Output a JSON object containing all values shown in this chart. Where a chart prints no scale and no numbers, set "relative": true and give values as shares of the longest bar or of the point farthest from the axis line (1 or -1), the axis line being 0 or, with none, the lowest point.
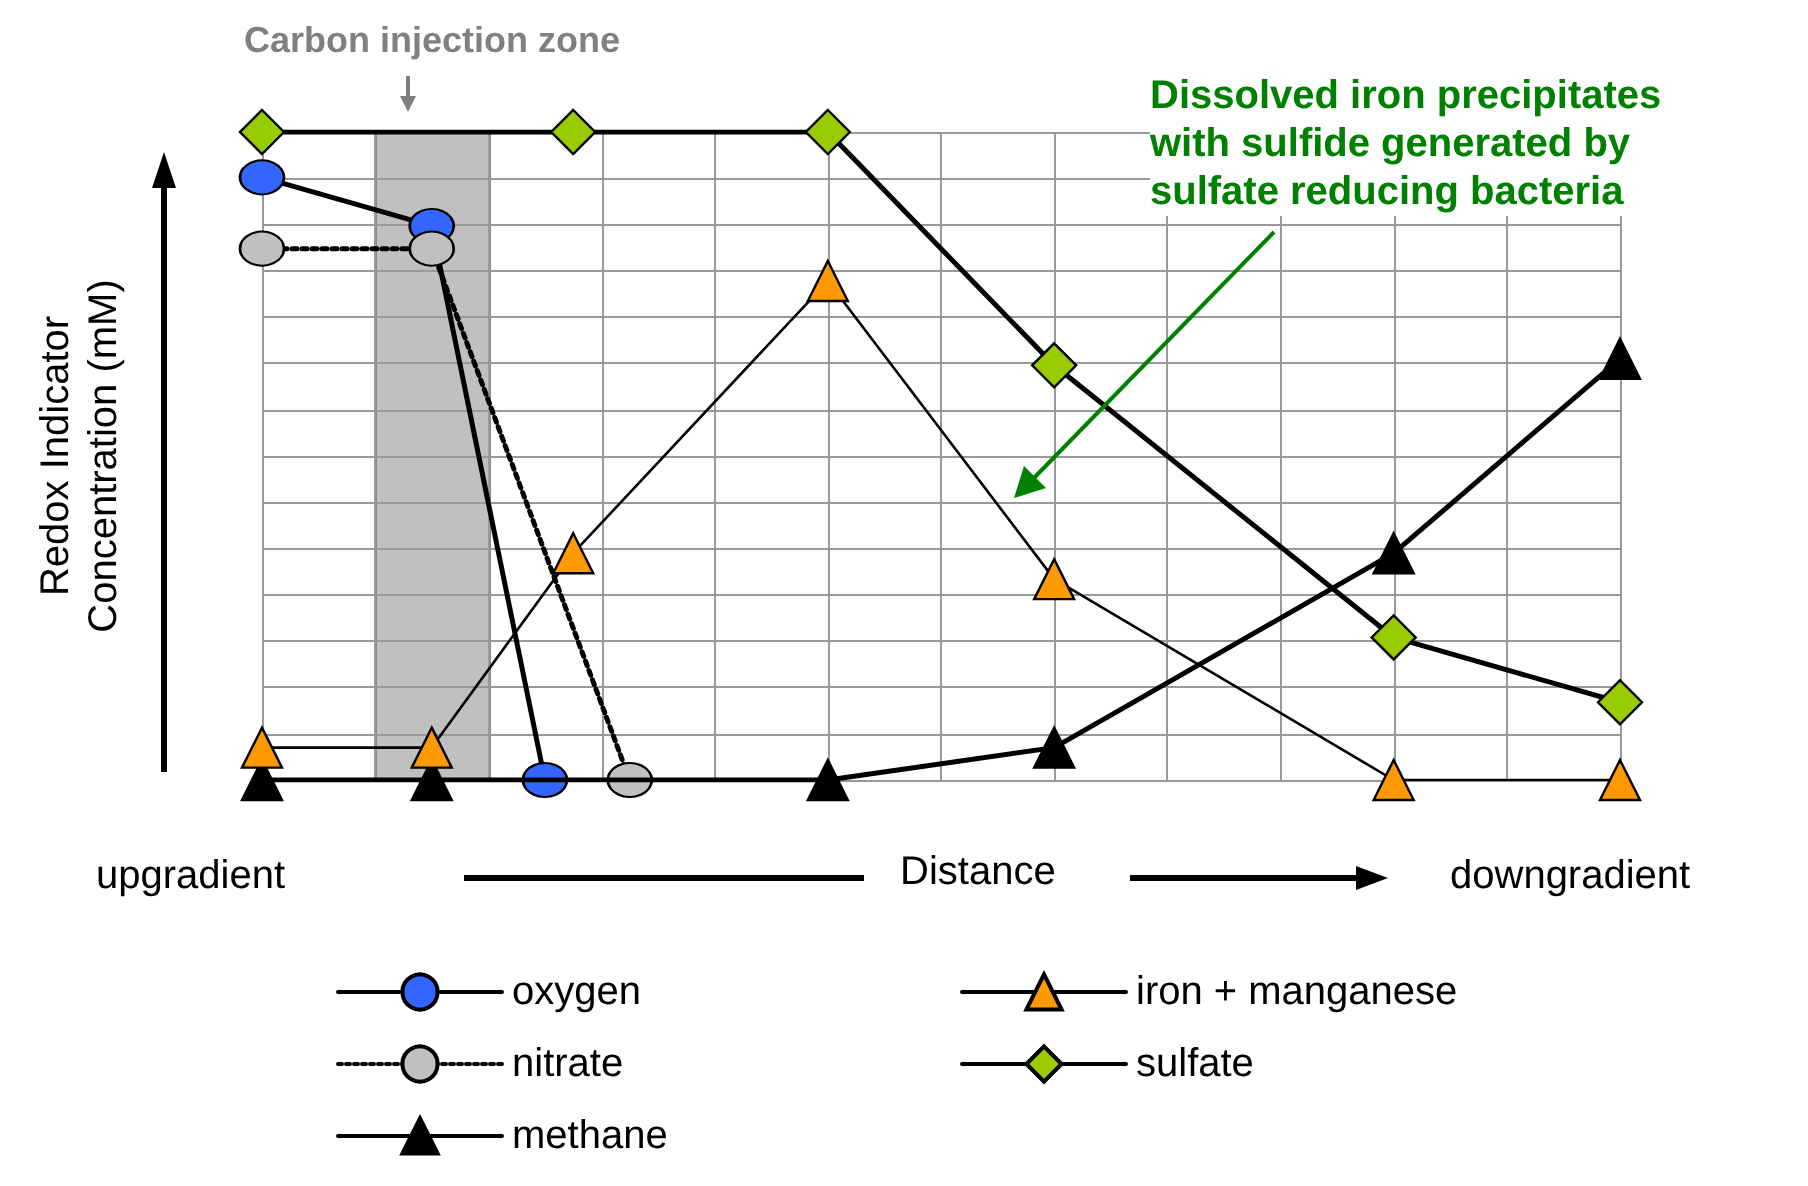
{
  "chart_data": {
    "type": "line",
    "relative": true,
    "ylabel": "Redox Indicator\nConcentration (mM)",
    "xlabel": "Distance",
    "grid": true,
    "legend": "bottom",
    "categories": [
      null,
      null,
      null,
      null,
      null,
      null,
      null,
      null,
      null,
      null,
      null,
      null,
      null,
      null,
      null,
      null,
      null,
      null,
      null,
      null,
      null,
      null,
      null,
      null,
      null,
      null,
      null,
      null,
      null,
      null,
      null,
      null,
      null,
      null,
      null,
      null,
      null,
      null,
      null,
      null,
      null,
      null,
      null,
      null,
      null,
      null,
      null,
      null,
      null
    ],
    "series": [
      {
        "name": "oxygen",
        "color": "#3366ff",
        "marker": "circle",
        "values": [
          0.93,
          null,
          null,
          null,
          null,
          null,
          0.855,
          null,
          null,
          null,
          0,
          null,
          null,
          null,
          null,
          null,
          null,
          null,
          null,
          null,
          null,
          null,
          null,
          null,
          null,
          null,
          null,
          null,
          null,
          null,
          null,
          null,
          null,
          null,
          null,
          null,
          null,
          null,
          null,
          null,
          null,
          null,
          null,
          null,
          null,
          null,
          null,
          null,
          null
        ]
      },
      {
        "name": "nitrate",
        "color": "#c0c0c0",
        "marker": "circle",
        "line_style": "dotted",
        "values": [
          0.82,
          null,
          null,
          null,
          null,
          null,
          0.82,
          null,
          null,
          null,
          null,
          null,
          null,
          0,
          null,
          null,
          null,
          null,
          null,
          null,
          null,
          null,
          null,
          null,
          null,
          null,
          null,
          null,
          null,
          null,
          null,
          null,
          null,
          null,
          null,
          null,
          null,
          null,
          null,
          null,
          null,
          null,
          null,
          null,
          null,
          null,
          null,
          null,
          null
        ]
      },
      {
        "name": "methane",
        "color": "#000000",
        "marker": "triangle",
        "values": [
          0,
          null,
          null,
          null,
          null,
          null,
          0,
          null,
          null,
          null,
          null,
          null,
          null,
          null,
          null,
          null,
          null,
          null,
          null,
          null,
          0,
          null,
          null,
          null,
          null,
          null,
          null,
          null,
          0.05,
          null,
          null,
          null,
          null,
          null,
          null,
          null,
          null,
          null,
          null,
          null,
          0.35,
          null,
          null,
          null,
          null,
          null,
          null,
          null,
          0.65
        ]
      },
      {
        "name": "iron + manganese",
        "color": "#ff9900",
        "marker": "triangle",
        "values": [
          0.05,
          null,
          null,
          null,
          null,
          null,
          0.05,
          null,
          null,
          null,
          null,
          0.35,
          null,
          null,
          null,
          null,
          null,
          null,
          null,
          null,
          0.77,
          null,
          null,
          null,
          null,
          null,
          null,
          null,
          0.31,
          null,
          null,
          null,
          null,
          null,
          null,
          null,
          null,
          null,
          null,
          null,
          0,
          null,
          null,
          null,
          null,
          null,
          null,
          null,
          0
        ]
      },
      {
        "name": "sulfate",
        "color": "#99cc00",
        "marker": "diamond",
        "values": [
          1,
          null,
          null,
          null,
          null,
          null,
          null,
          null,
          null,
          null,
          null,
          1,
          null,
          null,
          null,
          null,
          null,
          null,
          null,
          null,
          1,
          null,
          null,
          null,
          null,
          null,
          null,
          null,
          0.64,
          null,
          null,
          null,
          null,
          null,
          null,
          null,
          null,
          null,
          null,
          null,
          0.22,
          null,
          null,
          null,
          null,
          null,
          null,
          null,
          0.12
        ]
      }
    ],
    "annotations": [
      "Carbon injection zone",
      "Dissolved iron precipitates with sulfide generated by sulfate reducing bacteria",
      "upgradient",
      "downgradient"
    ]
  }
}
